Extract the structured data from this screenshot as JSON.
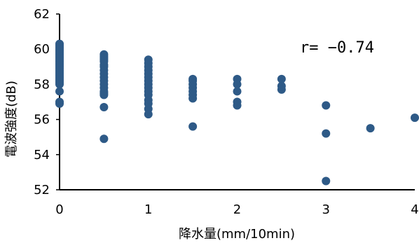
{
  "chart_data": {
    "type": "scatter",
    "title": "",
    "xlabel": "降水量(mm/10min)",
    "ylabel": "電波強度(dB)",
    "xlim": [
      0,
      4
    ],
    "ylim": [
      52,
      62
    ],
    "xticks": [
      "0",
      "1",
      "2",
      "3",
      "4"
    ],
    "yticks": [
      "52",
      "54",
      "56",
      "58",
      "60",
      "62"
    ],
    "grid": false,
    "legend": "none",
    "marker_color": "#2e5a87",
    "annotation": "r= −0.74",
    "series": [
      {
        "points": [
          [
            0,
            60.3
          ],
          [
            0,
            60.2
          ],
          [
            0,
            60.1
          ],
          [
            0,
            60.0
          ],
          [
            0,
            59.9
          ],
          [
            0,
            59.8
          ],
          [
            0,
            59.7
          ],
          [
            0,
            59.6
          ],
          [
            0,
            59.5
          ],
          [
            0,
            59.4
          ],
          [
            0,
            59.3
          ],
          [
            0,
            59.2
          ],
          [
            0,
            59.1
          ],
          [
            0,
            59.0
          ],
          [
            0,
            58.9
          ],
          [
            0,
            58.8
          ],
          [
            0,
            58.7
          ],
          [
            0,
            58.6
          ],
          [
            0,
            58.5
          ],
          [
            0,
            58.4
          ],
          [
            0,
            58.3
          ],
          [
            0,
            58.2
          ],
          [
            0,
            58.1
          ],
          [
            0,
            58.0
          ],
          [
            0,
            57.6
          ],
          [
            0,
            57.0
          ],
          [
            0,
            56.9
          ],
          [
            0.5,
            59.7
          ],
          [
            0.5,
            59.6
          ],
          [
            0.5,
            59.5
          ],
          [
            0.5,
            59.4
          ],
          [
            0.5,
            59.3
          ],
          [
            0.5,
            59.1
          ],
          [
            0.5,
            59.0
          ],
          [
            0.5,
            58.8
          ],
          [
            0.5,
            58.6
          ],
          [
            0.5,
            58.4
          ],
          [
            0.5,
            58.2
          ],
          [
            0.5,
            58.0
          ],
          [
            0.5,
            57.8
          ],
          [
            0.5,
            57.6
          ],
          [
            0.5,
            57.5
          ],
          [
            0.5,
            57.4
          ],
          [
            0.5,
            56.7
          ],
          [
            0.5,
            54.9
          ],
          [
            1,
            59.4
          ],
          [
            1,
            59.2
          ],
          [
            1,
            59.0
          ],
          [
            1,
            58.8
          ],
          [
            1,
            58.6
          ],
          [
            1,
            58.4
          ],
          [
            1,
            58.2
          ],
          [
            1,
            58.0
          ],
          [
            1,
            57.8
          ],
          [
            1,
            57.6
          ],
          [
            1,
            57.4
          ],
          [
            1,
            57.1
          ],
          [
            1,
            56.9
          ],
          [
            1,
            56.6
          ],
          [
            1,
            56.3
          ],
          [
            1.5,
            58.3
          ],
          [
            1.5,
            58.2
          ],
          [
            1.5,
            58.0
          ],
          [
            1.5,
            57.8
          ],
          [
            1.5,
            57.6
          ],
          [
            1.5,
            57.4
          ],
          [
            1.5,
            57.2
          ],
          [
            1.5,
            55.6
          ],
          [
            2,
            58.3
          ],
          [
            2,
            58.0
          ],
          [
            2,
            57.6
          ],
          [
            2,
            57.0
          ],
          [
            2,
            56.8
          ],
          [
            2.5,
            58.3
          ],
          [
            2.5,
            57.9
          ],
          [
            2.5,
            57.7
          ],
          [
            3,
            56.8
          ],
          [
            3,
            55.2
          ],
          [
            3,
            52.5
          ],
          [
            3.5,
            55.5
          ],
          [
            4,
            56.1
          ]
        ]
      }
    ]
  }
}
